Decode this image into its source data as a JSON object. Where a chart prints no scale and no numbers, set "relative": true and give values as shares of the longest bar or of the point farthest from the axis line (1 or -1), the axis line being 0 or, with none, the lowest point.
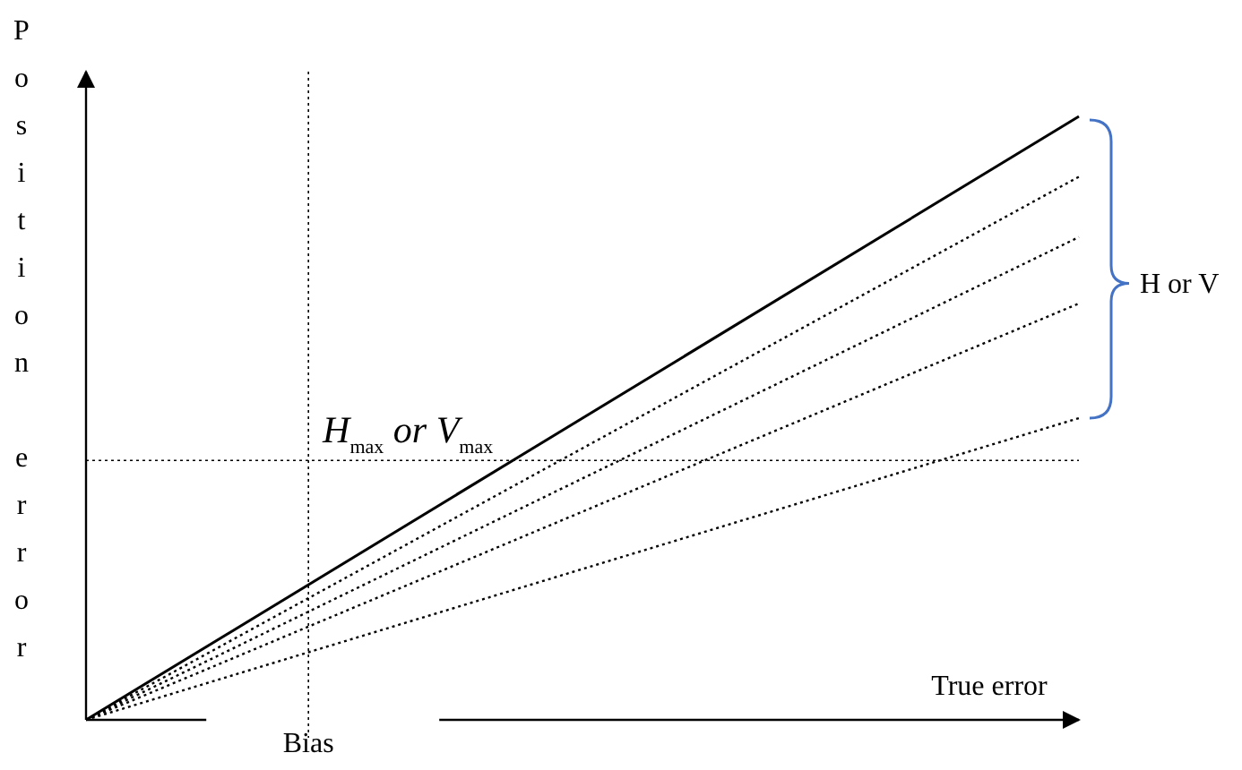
{
  "chart_data": {
    "type": "line",
    "relative": true,
    "xlabel": "True error",
    "ylabel": "Position error",
    "categories": [
      null,
      null
    ],
    "series": [
      {
        "color": "#000000",
        "values": [
          0,
          1
        ],
        "line_style": "solid"
      },
      {
        "color": "#000000",
        "values": [
          0,
          0.9
        ],
        "line_style": "dotted"
      },
      {
        "color": "#000000",
        "values": [
          0,
          0.8
        ],
        "line_style": "dotted"
      },
      {
        "color": "#000000",
        "values": [
          0,
          0.69
        ],
        "line_style": "dotted"
      },
      {
        "color": "#000000",
        "values": [
          0,
          0.5
        ],
        "line_style": "dotted"
      }
    ],
    "ref_lines": [
      {
        "axis": "y",
        "value": 0.43,
        "label": "H$_{max}$  or V$_{max}$",
        "line_style": "dotted"
      }
    ],
    "annotations": [
      "Bias",
      "H or V"
    ]
  }
}
